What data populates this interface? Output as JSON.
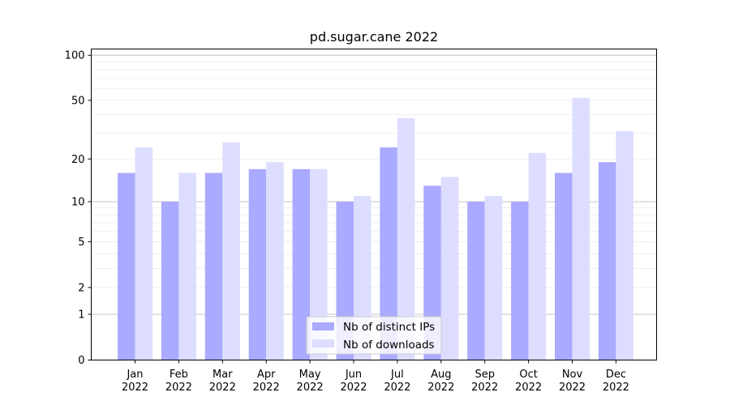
{
  "chart_data": {
    "type": "bar",
    "title": "pd.sugar.cane 2022",
    "xlabel": "",
    "ylabel": "",
    "yscale": "symlog",
    "ylim": [
      0,
      110
    ],
    "categories": [
      [
        "Jan",
        "2022"
      ],
      [
        "Feb",
        "2022"
      ],
      [
        "Mar",
        "2022"
      ],
      [
        "Apr",
        "2022"
      ],
      [
        "May",
        "2022"
      ],
      [
        "Jun",
        "2022"
      ],
      [
        "Jul",
        "2022"
      ],
      [
        "Aug",
        "2022"
      ],
      [
        "Sep",
        "2022"
      ],
      [
        "Oct",
        "2022"
      ],
      [
        "Nov",
        "2022"
      ],
      [
        "Dec",
        "2022"
      ]
    ],
    "y_ticks": [
      0,
      1,
      2,
      5,
      10,
      20,
      50,
      100
    ],
    "grid": true,
    "legend_position": "bottom-center",
    "series": [
      {
        "name": "Nb of distinct IPs",
        "color": "#aaaaff",
        "values": [
          16,
          10,
          16,
          17,
          17,
          10,
          24,
          13,
          10,
          10,
          16,
          19
        ]
      },
      {
        "name": "Nb of downloads",
        "color": "#ddddff",
        "values": [
          24,
          16,
          26,
          19,
          17,
          11,
          38,
          15,
          11,
          22,
          52,
          31
        ]
      }
    ]
  }
}
